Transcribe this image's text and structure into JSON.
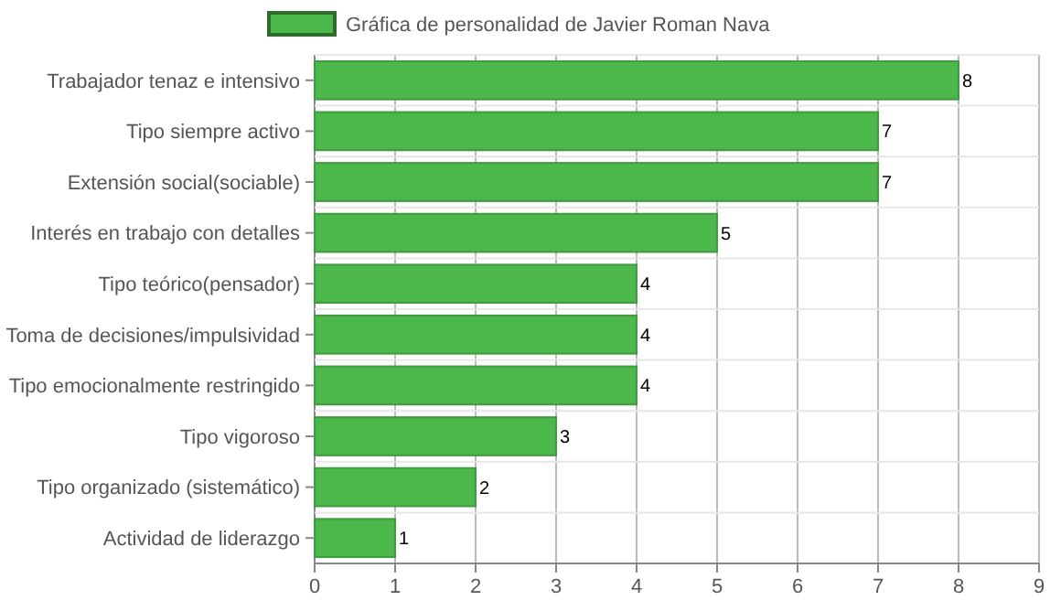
{
  "chart_data": {
    "type": "bar",
    "orientation": "horizontal",
    "categories": [
      "Trabajador tenaz e intensivo",
      "Tipo siempre activo",
      "Extensión social(sociable)",
      "Interés en trabajo con detalles",
      "Tipo teórico(pensador)",
      "Toma de decisiones/impulsividad",
      "Tipo emocionalmente restringido",
      "Tipo vigoroso",
      "Tipo organizado (sistemático)",
      "Actividad de liderazgo"
    ],
    "series": [
      {
        "name": "Gráfica de personalidad de Javier Roman Nava",
        "color": "#4cb84c",
        "values": [
          8,
          7,
          7,
          5,
          4,
          4,
          4,
          3,
          2,
          1
        ]
      }
    ],
    "xlim": [
      0,
      9
    ],
    "xticks": [
      0,
      1,
      2,
      3,
      4,
      5,
      6,
      7,
      8,
      9
    ],
    "grid": true,
    "legend": "top",
    "data_labels": true
  }
}
